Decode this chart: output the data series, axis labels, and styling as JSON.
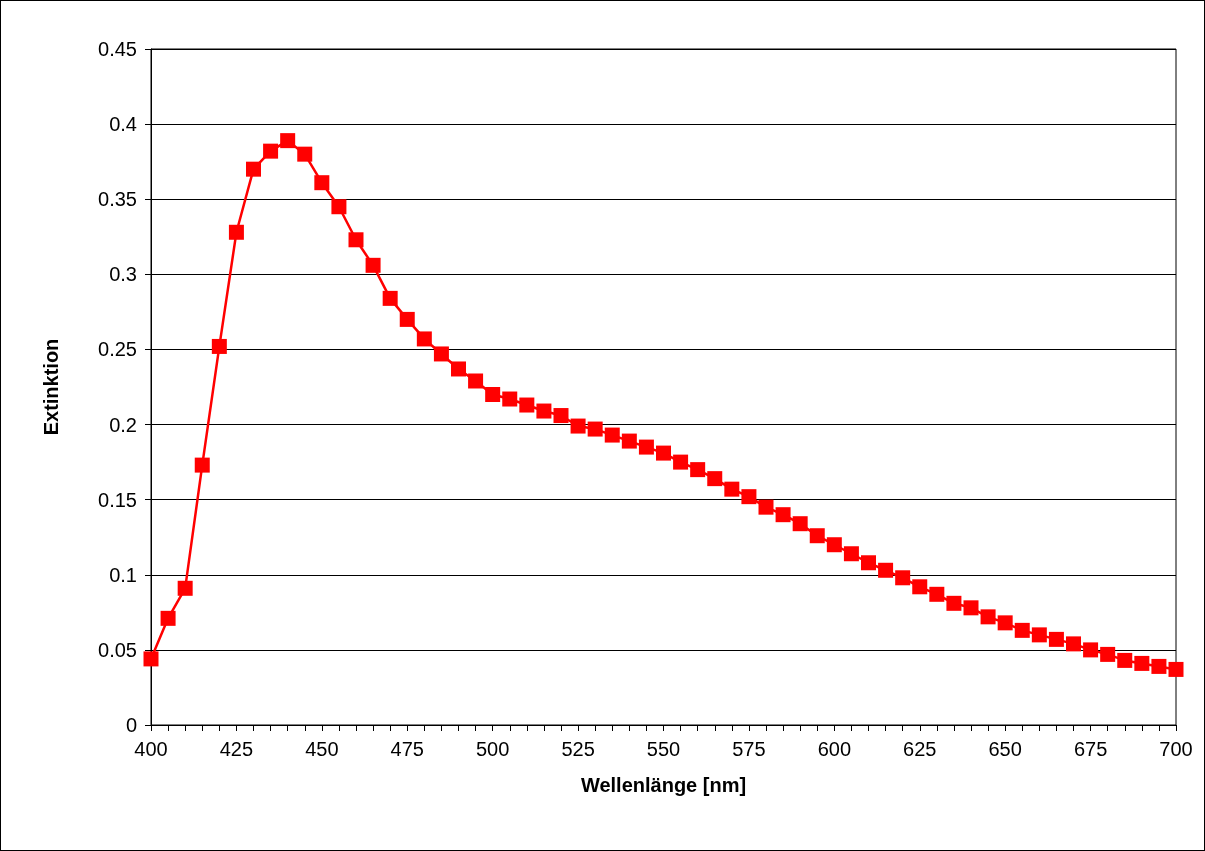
{
  "chart_data": {
    "type": "line",
    "xlabel": "Wellenlänge [nm]",
    "ylabel": "Extinktion",
    "x": [
      400,
      405,
      410,
      415,
      420,
      425,
      430,
      435,
      440,
      445,
      450,
      455,
      460,
      465,
      470,
      475,
      480,
      485,
      490,
      495,
      500,
      505,
      510,
      515,
      520,
      525,
      530,
      535,
      540,
      545,
      550,
      555,
      560,
      565,
      570,
      575,
      580,
      585,
      590,
      595,
      600,
      605,
      610,
      615,
      620,
      625,
      630,
      635,
      640,
      645,
      650,
      655,
      660,
      665,
      670,
      675,
      680,
      685,
      690,
      695,
      700
    ],
    "series": [
      {
        "color": "#ff0000",
        "values": [
          0.044,
          0.071,
          0.091,
          0.173,
          0.252,
          0.328,
          0.37,
          0.382,
          0.389,
          0.38,
          0.361,
          0.345,
          0.323,
          0.306,
          0.284,
          0.27,
          0.257,
          0.247,
          0.237,
          0.229,
          0.22,
          0.217,
          0.213,
          0.209,
          0.206,
          0.199,
          0.197,
          0.193,
          0.189,
          0.185,
          0.181,
          0.175,
          0.17,
          0.164,
          0.157,
          0.152,
          0.145,
          0.14,
          0.134,
          0.126,
          0.12,
          0.114,
          0.108,
          0.103,
          0.098,
          0.092,
          0.087,
          0.081,
          0.078,
          0.072,
          0.068,
          0.063,
          0.06,
          0.057,
          0.054,
          0.05,
          0.047,
          0.043,
          0.041,
          0.039,
          0.037
        ]
      }
    ],
    "xlim": [
      400,
      700
    ],
    "xticks": [
      400,
      {
        "value": 405,
        "label": null
      },
      {
        "value": 410,
        "label": null
      },
      {
        "value": 415,
        "label": null
      },
      {
        "value": 420,
        "label": null
      },
      425,
      {
        "value": 430,
        "label": null
      },
      {
        "value": 435,
        "label": null
      },
      {
        "value": 440,
        "label": null
      },
      {
        "value": 445,
        "label": null
      },
      450,
      {
        "value": 455,
        "label": null
      },
      {
        "value": 460,
        "label": null
      },
      {
        "value": 465,
        "label": null
      },
      {
        "value": 470,
        "label": null
      },
      475,
      {
        "value": 480,
        "label": null
      },
      {
        "value": 485,
        "label": null
      },
      {
        "value": 490,
        "label": null
      },
      {
        "value": 495,
        "label": null
      },
      500,
      {
        "value": 505,
        "label": null
      },
      {
        "value": 510,
        "label": null
      },
      {
        "value": 515,
        "label": null
      },
      {
        "value": 520,
        "label": null
      },
      525,
      {
        "value": 530,
        "label": null
      },
      {
        "value": 535,
        "label": null
      },
      {
        "value": 540,
        "label": null
      },
      {
        "value": 545,
        "label": null
      },
      550,
      {
        "value": 555,
        "label": null
      },
      {
        "value": 560,
        "label": null
      },
      {
        "value": 565,
        "label": null
      },
      {
        "value": 570,
        "label": null
      },
      575,
      {
        "value": 580,
        "label": null
      },
      {
        "value": 585,
        "label": null
      },
      {
        "value": 590,
        "label": null
      },
      {
        "value": 595,
        "label": null
      },
      600,
      {
        "value": 605,
        "label": null
      },
      {
        "value": 610,
        "label": null
      },
      {
        "value": 615,
        "label": null
      },
      {
        "value": 620,
        "label": null
      },
      625,
      {
        "value": 630,
        "label": null
      },
      {
        "value": 635,
        "label": null
      },
      {
        "value": 640,
        "label": null
      },
      {
        "value": 645,
        "label": null
      },
      650,
      {
        "value": 655,
        "label": null
      },
      {
        "value": 660,
        "label": null
      },
      {
        "value": 665,
        "label": null
      },
      {
        "value": 670,
        "label": null
      },
      675,
      {
        "value": 680,
        "label": null
      },
      {
        "value": 685,
        "label": null
      },
      {
        "value": 690,
        "label": null
      },
      {
        "value": 695,
        "label": null
      },
      700
    ],
    "ylim": [
      0,
      0.45
    ],
    "yticks": [
      0,
      0.05,
      0.1,
      0.15,
      0.2,
      0.25,
      0.3,
      0.35,
      0.4,
      0.45
    ],
    "grid": "y",
    "marker": "square",
    "line_style": "solid"
  }
}
